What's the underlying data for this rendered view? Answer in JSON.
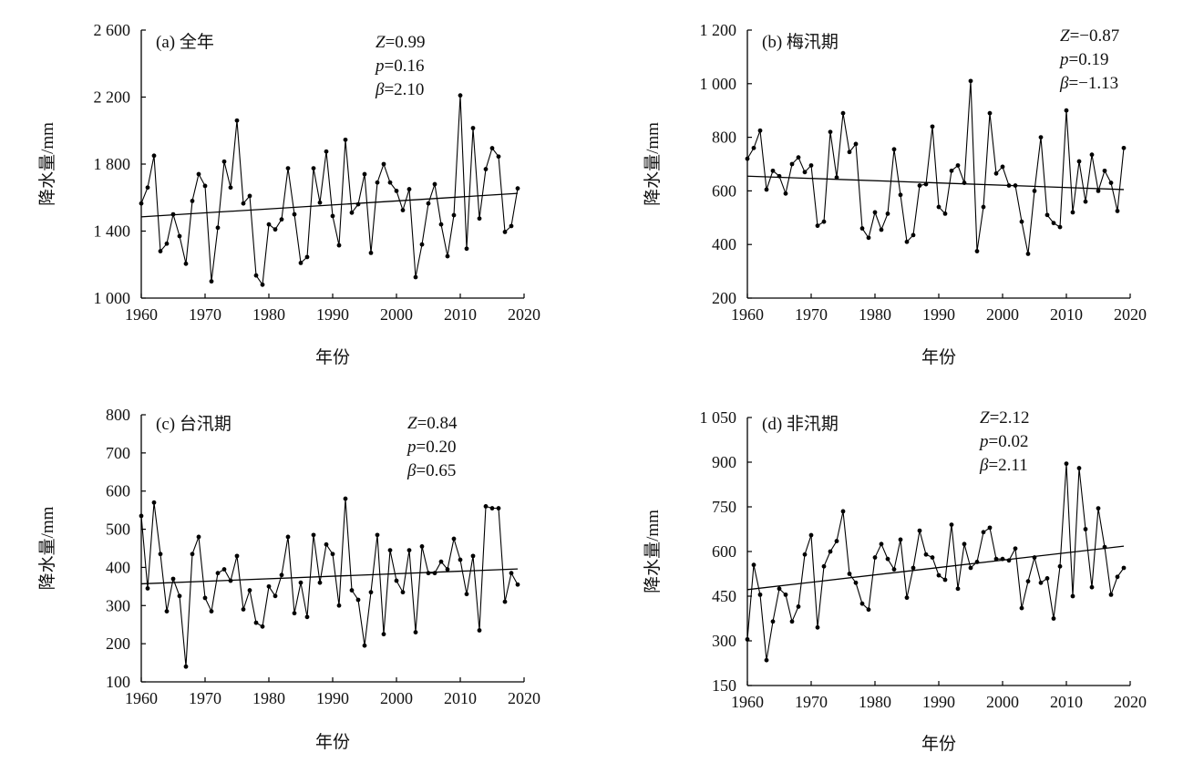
{
  "chart_data": [
    {
      "type": "line",
      "title": "(a) 全年",
      "xlabel": "年份",
      "ylabel": "降水量/mm",
      "xlim": [
        1960,
        2020
      ],
      "ylim": [
        1000,
        2600
      ],
      "xticks": [
        1960,
        1970,
        1980,
        1990,
        2000,
        2010,
        2020
      ],
      "yticks": [
        1000,
        1400,
        1800,
        2200,
        2600
      ],
      "xtick_labels": [
        "1960",
        "1970",
        "1980",
        "1990",
        "2000",
        "2010",
        "2020"
      ],
      "ytick_labels": [
        "1 000",
        "1 400",
        "1 800",
        "2 200",
        "2 600"
      ],
      "stats": [
        "Z=0.99",
        "p=0.16",
        "β=2.10"
      ],
      "x": [
        1960,
        1961,
        1962,
        1963,
        1964,
        1965,
        1966,
        1967,
        1968,
        1969,
        1970,
        1971,
        1972,
        1973,
        1974,
        1975,
        1976,
        1977,
        1978,
        1979,
        1980,
        1981,
        1982,
        1983,
        1984,
        1985,
        1986,
        1987,
        1988,
        1989,
        1990,
        1991,
        1992,
        1993,
        1994,
        1995,
        1996,
        1997,
        1998,
        1999,
        2000,
        2001,
        2002,
        2003,
        2004,
        2005,
        2006,
        2007,
        2008,
        2009,
        2010,
        2011,
        2012,
        2013,
        2014,
        2015,
        2016,
        2017,
        2018,
        2019
      ],
      "values": [
        1565,
        1660,
        1850,
        1280,
        1325,
        1500,
        1370,
        1205,
        1580,
        1740,
        1670,
        1100,
        1420,
        1815,
        1660,
        2060,
        1565,
        1610,
        1135,
        1080,
        1440,
        1410,
        1470,
        1775,
        1500,
        1210,
        1245,
        1775,
        1570,
        1875,
        1490,
        1315,
        1945,
        1510,
        1560,
        1740,
        1270,
        1690,
        1800,
        1690,
        1640,
        1525,
        1650,
        1125,
        1320,
        1565,
        1680,
        1440,
        1250,
        1495,
        2210,
        1295,
        2015,
        1475,
        1770,
        1895,
        1845,
        1395,
        1430,
        1655
      ],
      "trend": [
        1485,
        1625
      ]
    },
    {
      "type": "line",
      "title": "(b) 梅汛期",
      "xlabel": "年份",
      "ylabel": "降水量/mm",
      "xlim": [
        1960,
        2020
      ],
      "ylim": [
        200,
        1200
      ],
      "xticks": [
        1960,
        1970,
        1980,
        1990,
        2000,
        2010,
        2020
      ],
      "yticks": [
        200,
        400,
        600,
        800,
        1000,
        1200
      ],
      "xtick_labels": [
        "1960",
        "1970",
        "1980",
        "1990",
        "2000",
        "2010",
        "2020"
      ],
      "ytick_labels": [
        "200",
        "400",
        "600",
        "800",
        "1 000",
        "1 200"
      ],
      "stats": [
        "Z=−0.87",
        "p=0.19",
        "β=−1.13"
      ],
      "x": [
        1960,
        1961,
        1962,
        1963,
        1964,
        1965,
        1966,
        1967,
        1968,
        1969,
        1970,
        1971,
        1972,
        1973,
        1974,
        1975,
        1976,
        1977,
        1978,
        1979,
        1980,
        1981,
        1982,
        1983,
        1984,
        1985,
        1986,
        1987,
        1988,
        1989,
        1990,
        1991,
        1992,
        1993,
        1994,
        1995,
        1996,
        1997,
        1998,
        1999,
        2000,
        2001,
        2002,
        2003,
        2004,
        2005,
        2006,
        2007,
        2008,
        2009,
        2010,
        2011,
        2012,
        2013,
        2014,
        2015,
        2016,
        2017,
        2018,
        2019
      ],
      "values": [
        720,
        760,
        825,
        605,
        675,
        655,
        590,
        700,
        725,
        670,
        695,
        470,
        485,
        820,
        650,
        890,
        745,
        775,
        460,
        425,
        520,
        455,
        515,
        755,
        585,
        410,
        435,
        620,
        625,
        840,
        540,
        515,
        675,
        695,
        630,
        1010,
        375,
        540,
        890,
        665,
        690,
        620,
        620,
        485,
        365,
        600,
        800,
        510,
        480,
        465,
        900,
        520,
        710,
        560,
        735,
        600,
        675,
        630,
        525,
        760
      ],
      "trend": [
        655,
        605
      ]
    },
    {
      "type": "line",
      "title": "(c) 台汛期",
      "xlabel": "年份",
      "ylabel": "降水量/mm",
      "xlim": [
        1960,
        2020
      ],
      "ylim": [
        100,
        800
      ],
      "xticks": [
        1960,
        1970,
        1980,
        1990,
        2000,
        2010,
        2020
      ],
      "yticks": [
        100,
        200,
        300,
        400,
        500,
        600,
        700,
        800
      ],
      "xtick_labels": [
        "1960",
        "1970",
        "1980",
        "1990",
        "2000",
        "2010",
        "2020"
      ],
      "ytick_labels": [
        "100",
        "200",
        "300",
        "400",
        "500",
        "600",
        "700",
        "800"
      ],
      "stats": [
        "Z=0.84",
        "p=0.20",
        "β=0.65"
      ],
      "x": [
        1960,
        1961,
        1962,
        1963,
        1964,
        1965,
        1966,
        1967,
        1968,
        1969,
        1970,
        1971,
        1972,
        1973,
        1974,
        1975,
        1976,
        1977,
        1978,
        1979,
        1980,
        1981,
        1982,
        1983,
        1984,
        1985,
        1986,
        1987,
        1988,
        1989,
        1990,
        1991,
        1992,
        1993,
        1994,
        1995,
        1996,
        1997,
        1998,
        1999,
        2000,
        2001,
        2002,
        2003,
        2004,
        2005,
        2006,
        2007,
        2008,
        2009,
        2010,
        2011,
        2012,
        2013,
        2014,
        2015,
        2016,
        2017,
        2018,
        2019
      ],
      "values": [
        535,
        345,
        570,
        435,
        285,
        370,
        325,
        140,
        435,
        480,
        320,
        285,
        385,
        395,
        365,
        430,
        290,
        340,
        255,
        245,
        350,
        325,
        380,
        480,
        280,
        360,
        270,
        485,
        360,
        460,
        435,
        300,
        580,
        340,
        315,
        195,
        335,
        485,
        225,
        445,
        365,
        335,
        445,
        230,
        455,
        385,
        385,
        415,
        395,
        475,
        420,
        330,
        430,
        235,
        560,
        555,
        555,
        310,
        385,
        355
      ],
      "trend": [
        357,
        396
      ]
    },
    {
      "type": "line",
      "title": "(d) 非汛期",
      "xlabel": "年份",
      "ylabel": "降水量/mm",
      "xlim": [
        1960,
        2020
      ],
      "ylim": [
        150,
        1050
      ],
      "xticks": [
        1960,
        1970,
        1980,
        1990,
        2000,
        2010,
        2020
      ],
      "yticks": [
        150,
        300,
        450,
        600,
        750,
        900,
        1050
      ],
      "xtick_labels": [
        "1960",
        "1970",
        "1980",
        "1990",
        "2000",
        "2010",
        "2020"
      ],
      "ytick_labels": [
        "150",
        "300",
        "450",
        "600",
        "750",
        "900",
        "1 050"
      ],
      "stats": [
        "Z=2.12",
        "p=0.02",
        "β=2.11"
      ],
      "x": [
        1960,
        1961,
        1962,
        1963,
        1964,
        1965,
        1966,
        1967,
        1968,
        1969,
        1970,
        1971,
        1972,
        1973,
        1974,
        1975,
        1976,
        1977,
        1978,
        1979,
        1980,
        1981,
        1982,
        1983,
        1984,
        1985,
        1986,
        1987,
        1988,
        1989,
        1990,
        1991,
        1992,
        1993,
        1994,
        1995,
        1996,
        1997,
        1998,
        1999,
        2000,
        2001,
        2002,
        2003,
        2004,
        2005,
        2006,
        2007,
        2008,
        2009,
        2010,
        2011,
        2012,
        2013,
        2014,
        2015,
        2016,
        2017,
        2018,
        2019
      ],
      "values": [
        305,
        555,
        455,
        235,
        365,
        475,
        455,
        365,
        415,
        590,
        655,
        345,
        550,
        600,
        635,
        735,
        525,
        495,
        425,
        405,
        580,
        625,
        575,
        540,
        640,
        445,
        545,
        670,
        590,
        580,
        520,
        505,
        690,
        475,
        625,
        545,
        565,
        665,
        680,
        575,
        575,
        570,
        610,
        410,
        500,
        580,
        495,
        510,
        375,
        550,
        895,
        450,
        880,
        675,
        480,
        745,
        615,
        455,
        515,
        545
      ],
      "trend": [
        472,
        618
      ]
    }
  ]
}
